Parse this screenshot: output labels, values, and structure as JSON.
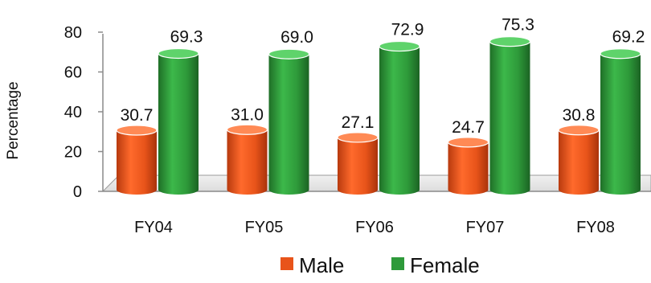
{
  "chart_data": {
    "type": "bar",
    "title": "",
    "xlabel": "",
    "ylabel": "Percentage",
    "ylim": [
      0,
      80
    ],
    "yticks": [
      0,
      20,
      40,
      60,
      80
    ],
    "categories": [
      "FY04",
      "FY05",
      "FY06",
      "FY07",
      "FY08"
    ],
    "series": [
      {
        "name": "Male",
        "values": [
          30.7,
          31.0,
          27.1,
          24.7,
          30.8
        ],
        "labels": [
          "30.7",
          "31.0",
          "27.1",
          "24.7",
          "30.8"
        ],
        "color": "#e8541a"
      },
      {
        "name": "Female",
        "values": [
          69.3,
          69.0,
          72.9,
          75.3,
          69.2
        ],
        "labels": [
          "69.3",
          "69.0",
          "72.9",
          "75.3",
          "69.2"
        ],
        "color": "#2e9a3a"
      }
    ],
    "grid": false,
    "legend_position": "bottom",
    "style": "3d-cylinder"
  }
}
